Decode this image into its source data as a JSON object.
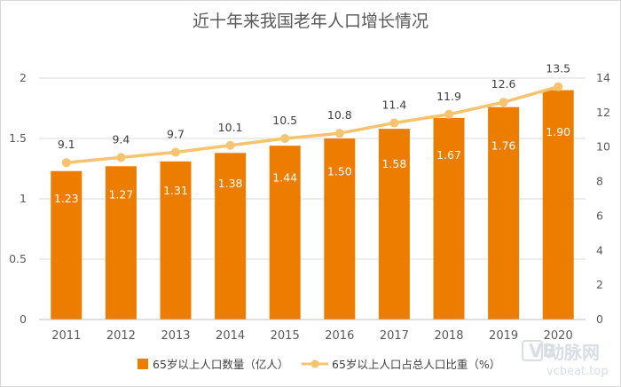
{
  "chart_data": {
    "type": "bar",
    "title": "近十年来我国老年人口增长情况",
    "categories": [
      "2011",
      "2012",
      "2013",
      "2014",
      "2015",
      "2016",
      "2017",
      "2018",
      "2019",
      "2020"
    ],
    "series": [
      {
        "name": "65岁以上人口数量（亿人）",
        "type": "bar",
        "axis": "left",
        "color": "#ED7D00",
        "values": [
          1.23,
          1.27,
          1.31,
          1.38,
          1.44,
          1.5,
          1.58,
          1.67,
          1.76,
          1.9
        ],
        "labels": [
          "1.23",
          "1.27",
          "1.31",
          "1.38",
          "1.44",
          "1.50",
          "1.58",
          "1.67",
          "1.76",
          "1.90"
        ]
      },
      {
        "name": "65岁以上人口占总人口比重（%）",
        "type": "line",
        "axis": "right",
        "color": "#F6C36E",
        "values": [
          9.1,
          9.4,
          9.7,
          10.1,
          10.5,
          10.8,
          11.4,
          11.9,
          12.6,
          13.5
        ],
        "labels": [
          "9.1",
          "9.4",
          "9.7",
          "10.1",
          "10.5",
          "10.8",
          "11.4",
          "11.9",
          "12.6",
          "13.5"
        ]
      }
    ],
    "y_left": {
      "lim": [
        0,
        2
      ],
      "ticks": [
        "0",
        "0.5",
        "1",
        "1.5",
        "2"
      ]
    },
    "y_right": {
      "lim": [
        0,
        14
      ],
      "ticks": [
        "0",
        "2",
        "4",
        "6",
        "8",
        "10",
        "12",
        "14"
      ]
    },
    "grid": true,
    "legend_position": "bottom"
  },
  "watermark": {
    "logo_text": "动脉网",
    "sub_text": "vcbeat.top",
    "color": "#d8dde6"
  }
}
